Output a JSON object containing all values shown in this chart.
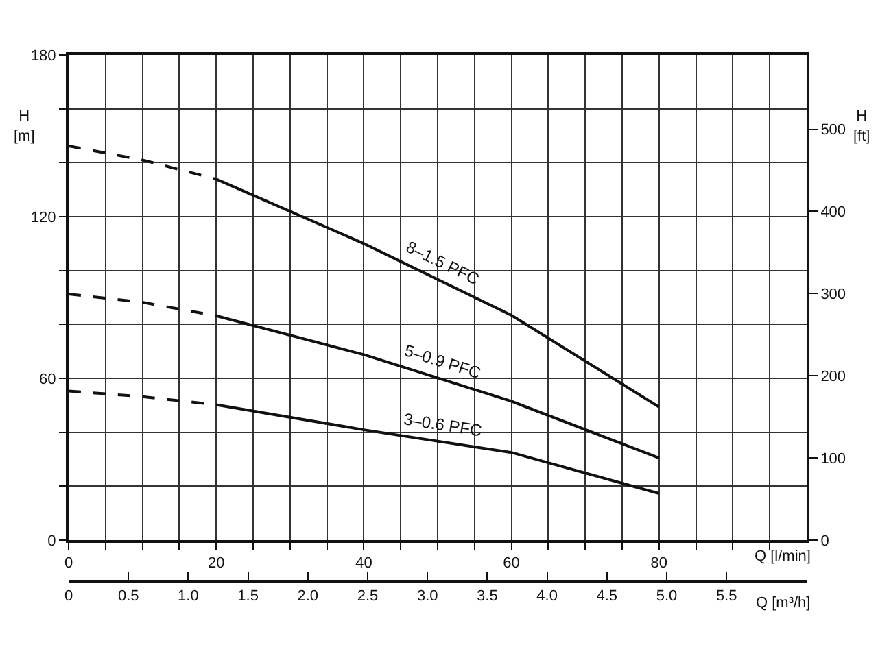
{
  "chart_data": {
    "type": "line",
    "xlabel": "Q [l/min]",
    "ylabel": "H [m]",
    "y2label": "H [ft]",
    "x2label": "Q [m³/h]",
    "xlim": [
      0,
      100
    ],
    "xticks": [
      0,
      {
        "value": 5,
        "label": null
      },
      {
        "value": 10,
        "label": null
      },
      {
        "value": 15,
        "label": null
      },
      20,
      {
        "value": 25,
        "label": null
      },
      {
        "value": 30,
        "label": null
      },
      {
        "value": 35,
        "label": null
      },
      40,
      {
        "value": 45,
        "label": null
      },
      {
        "value": 50,
        "label": null
      },
      {
        "value": 55,
        "label": null
      },
      60,
      {
        "value": 65,
        "label": null
      },
      {
        "value": 70,
        "label": null
      },
      {
        "value": 75,
        "label": null
      },
      80,
      {
        "value": 85,
        "label": null
      },
      {
        "value": 90,
        "label": null
      },
      {
        "value": 95,
        "label": null
      }
    ],
    "ylim": [
      0,
      180
    ],
    "yticks": [
      0,
      {
        "value": 20,
        "label": null
      },
      {
        "value": 40,
        "label": null
      },
      60,
      {
        "value": 80,
        "label": null
      },
      {
        "value": 100,
        "label": null
      },
      120,
      {
        "value": 140,
        "label": null
      },
      {
        "value": 160,
        "label": null
      },
      180
    ],
    "y2lim": [
      0,
      590.6
    ],
    "y2ticks": [
      0,
      100,
      200,
      300,
      400,
      500
    ],
    "x2lim": [
      0,
      6.17
    ],
    "x2ticks": [
      0,
      0.5,
      {
        "value": 1,
        "label": "1.0"
      },
      1.5,
      {
        "value": 2,
        "label": "2.0"
      },
      2.5,
      {
        "value": 3,
        "label": "3.0"
      },
      3.5,
      {
        "value": 4,
        "label": "4.0"
      },
      4.5,
      {
        "value": 5,
        "label": "5.0"
      },
      5.5
    ],
    "grid": true,
    "legend": false,
    "marker": "none",
    "line_style": "solid",
    "series": [
      {
        "color": "#111111",
        "line_style": "dashed",
        "x": [
          0,
          10,
          20
        ],
        "values": [
          146.2,
          141,
          133.9
        ]
      },
      {
        "name": "8–1.5 PFC",
        "color": "#111111",
        "x": [
          20,
          40,
          60,
          80
        ],
        "values": [
          133.9,
          110,
          83.4,
          49.4
        ]
      },
      {
        "color": "#111111",
        "line_style": "dashed",
        "x": [
          0,
          10,
          20
        ],
        "values": [
          91.3,
          88.2,
          83.2
        ]
      },
      {
        "name": "5–0.9 PFC",
        "color": "#111111",
        "x": [
          20,
          40,
          60,
          80
        ],
        "values": [
          83.2,
          68.8,
          51.5,
          30.5
        ]
      },
      {
        "color": "#111111",
        "line_style": "dashed",
        "x": [
          0,
          10,
          20
        ],
        "values": [
          55.3,
          53.2,
          50.2
        ]
      },
      {
        "name": "3–0.6 PFC",
        "color": "#111111",
        "x": [
          20,
          40,
          60,
          80
        ],
        "values": [
          50.2,
          40.9,
          32.5,
          17.3
        ]
      }
    ]
  }
}
